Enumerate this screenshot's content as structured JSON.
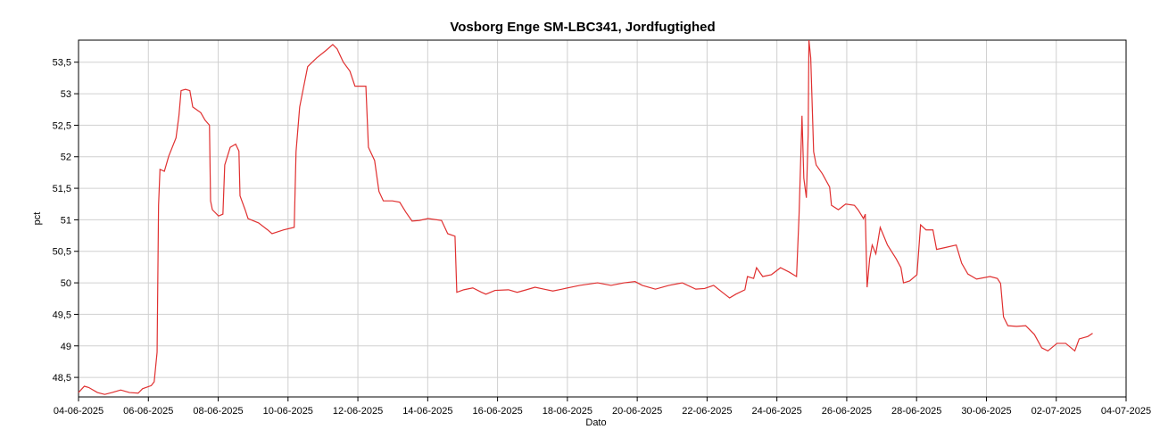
{
  "chart_data": {
    "type": "line",
    "title": "Vosborg Enge SM-LBC341, Jordfugtighed",
    "x_label": "Dato",
    "y_label": "pct",
    "xlim": [
      "2025-06-04",
      "2025-07-04"
    ],
    "xticks": [
      {
        "value": "2025-06-04",
        "label": "04-06-2025"
      },
      {
        "value": "2025-06-06",
        "label": "06-06-2025"
      },
      {
        "value": "2025-06-08",
        "label": "08-06-2025"
      },
      {
        "value": "2025-06-10",
        "label": "10-06-2025"
      },
      {
        "value": "2025-06-12",
        "label": "12-06-2025"
      },
      {
        "value": "2025-06-14",
        "label": "14-06-2025"
      },
      {
        "value": "2025-06-16",
        "label": "16-06-2025"
      },
      {
        "value": "2025-06-18",
        "label": "18-06-2025"
      },
      {
        "value": "2025-06-20",
        "label": "20-06-2025"
      },
      {
        "value": "2025-06-22",
        "label": "22-06-2025"
      },
      {
        "value": "2025-06-24",
        "label": "24-06-2025"
      },
      {
        "value": "2025-06-26",
        "label": "26-06-2025"
      },
      {
        "value": "2025-06-28",
        "label": "28-06-2025"
      },
      {
        "value": "2025-06-30",
        "label": "30-06-2025"
      },
      {
        "value": "2025-07-02",
        "label": "02-07-2025"
      },
      {
        "value": "2025-07-04",
        "label": "04-07-2025"
      }
    ],
    "ylim": [
      48.19,
      53.85
    ],
    "yticks": [
      {
        "value": 48.5,
        "label": "48,5"
      },
      49,
      {
        "value": 49.5,
        "label": "49,5"
      },
      50,
      {
        "value": 50.5,
        "label": "50,5"
      },
      51,
      {
        "value": 51.5,
        "label": "51,5"
      },
      52,
      {
        "value": 52.5,
        "label": "52,5"
      },
      53,
      {
        "value": 53.5,
        "label": "53,5"
      }
    ],
    "grid": true,
    "x": [
      "2025-06-04T00:00",
      "2025-06-04T04:00",
      "2025-06-04T07:00",
      "2025-06-04T13:00",
      "2025-06-04T18:00",
      "2025-06-04T23:00",
      "2025-06-05T05:00",
      "2025-06-05T11:00",
      "2025-06-05T17:00",
      "2025-06-05T20:00",
      "2025-06-06T02:00",
      "2025-06-06T04:00",
      "2025-06-06T06:00",
      "2025-06-06T07:00",
      "2025-06-06T08:00",
      "2025-06-06T11:00",
      "2025-06-06T14:00",
      "2025-06-06T19:00",
      "2025-06-06T21:00",
      "2025-06-06T22:30",
      "2025-06-07T01:30",
      "2025-06-07T04:30",
      "2025-06-07T06:30",
      "2025-06-07T12:00",
      "2025-06-07T15:00",
      "2025-06-07T18:00",
      "2025-06-07T18:45",
      "2025-06-07T20:00",
      "2025-06-08T00:15",
      "2025-06-08T03:15",
      "2025-06-08T04:30",
      "2025-06-08T08:15",
      "2025-06-08T12:00",
      "2025-06-08T14:15",
      "2025-06-08T15:00",
      "2025-06-08T18:30",
      "2025-06-08T20:30",
      "2025-06-09T03:45",
      "2025-06-09T10:00",
      "2025-06-09T13:00",
      "2025-06-09T21:00",
      "2025-06-10T04:15",
      "2025-06-10T05:30",
      "2025-06-10T08:00",
      "2025-06-10T13:30",
      "2025-06-10T19:45",
      "2025-06-11T01:45",
      "2025-06-11T06:45",
      "2025-06-11T09:45",
      "2025-06-11T14:00",
      "2025-06-11T18:30",
      "2025-06-11T22:00",
      "2025-06-12T05:30",
      "2025-06-12T07:15",
      "2025-06-12T11:30",
      "2025-06-12T14:30",
      "2025-06-12T17:30",
      "2025-06-12T23:45",
      "2025-06-13T04:45",
      "2025-06-13T09:00",
      "2025-06-13T13:15",
      "2025-06-13T18:15",
      "2025-06-14T00:15",
      "2025-06-14T09:30",
      "2025-06-14T13:45",
      "2025-06-14T18:45",
      "2025-06-14T20:00",
      "2025-06-15T00:45",
      "2025-06-15T07:00",
      "2025-06-15T13:00",
      "2025-06-15T16:00",
      "2025-06-15T22:15",
      "2025-06-16T07:30",
      "2025-06-16T13:30",
      "2025-06-16T19:45",
      "2025-06-17T01:45",
      "2025-06-17T08:00",
      "2025-06-17T14:00",
      "2025-06-17T20:15",
      "2025-06-18T02:15",
      "2025-06-18T08:30",
      "2025-06-18T20:45",
      "2025-06-19T06:00",
      "2025-06-19T15:00",
      "2025-06-19T22:30",
      "2025-06-20T03:30",
      "2025-06-20T12:30",
      "2025-06-20T21:45",
      "2025-06-21T07:00",
      "2025-06-21T16:15",
      "2025-06-21T22:15",
      "2025-06-22T04:30",
      "2025-06-22T10:30",
      "2025-06-22T15:30",
      "2025-06-22T19:45",
      "2025-06-23T02:00",
      "2025-06-23T03:45",
      "2025-06-23T08:00",
      "2025-06-23T10:00",
      "2025-06-23T14:15",
      "2025-06-23T20:15",
      "2025-06-24T02:30",
      "2025-06-24T08:30",
      "2025-06-24T13:30",
      "2025-06-24T15:15",
      "2025-06-24T17:15",
      "2025-06-24T18:30",
      "2025-06-24T20:15",
      "2025-06-24T21:30",
      "2025-06-24T22:00",
      "2025-06-24T23:15",
      "2025-06-25T01:15",
      "2025-06-25T03:00",
      "2025-06-25T07:15",
      "2025-06-25T12:15",
      "2025-06-25T13:30",
      "2025-06-25T18:15",
      "2025-06-25T23:15",
      "2025-06-26T05:15",
      "2025-06-26T07:45",
      "2025-06-26T11:30",
      "2025-06-26T12:45",
      "2025-06-26T14:00",
      "2025-06-26T15:45",
      "2025-06-26T17:30",
      "2025-06-26T20:00",
      "2025-06-26T23:00",
      "2025-06-27T04:00",
      "2025-06-27T10:00",
      "2025-06-27T13:15",
      "2025-06-27T15:00",
      "2025-06-27T19:15",
      "2025-06-28T00:15",
      "2025-06-28T02:45",
      "2025-06-28T06:30",
      "2025-06-28T11:15",
      "2025-06-28T13:45",
      "2025-06-28T19:45",
      "2025-06-29T03:15",
      "2025-06-29T07:00",
      "2025-06-29T11:15",
      "2025-06-29T17:15",
      "2025-06-30T02:30",
      "2025-06-30T07:30",
      "2025-06-30T09:45",
      "2025-06-30T11:45",
      "2025-06-30T14:45",
      "2025-06-30T20:45",
      "2025-07-01T03:00",
      "2025-07-01T09:00",
      "2025-07-01T14:00",
      "2025-07-01T18:15",
      "2025-07-02T00:30",
      "2025-07-02T06:30",
      "2025-07-02T12:45",
      "2025-07-02T15:45",
      "2025-07-02T21:45",
      "2025-07-03T01:00"
    ],
    "series": [
      {
        "name": "Jordfugtighed",
        "color": "#e03030",
        "values": [
          48.26,
          48.36,
          48.34,
          48.26,
          48.23,
          48.26,
          48.3,
          48.26,
          48.25,
          48.32,
          48.37,
          48.43,
          48.9,
          51.23,
          51.8,
          51.77,
          52.01,
          52.3,
          52.65,
          53.05,
          53.07,
          53.05,
          52.79,
          52.7,
          52.58,
          52.5,
          51.3,
          51.16,
          51.06,
          51.09,
          51.87,
          52.15,
          52.2,
          52.09,
          51.38,
          51.16,
          51.02,
          50.95,
          50.84,
          50.78,
          50.84,
          50.88,
          52.08,
          52.79,
          53.43,
          53.57,
          53.68,
          53.78,
          53.71,
          53.5,
          53.36,
          53.12,
          53.12,
          52.15,
          51.94,
          51.45,
          51.3,
          51.3,
          51.28,
          51.12,
          50.98,
          50.99,
          51.02,
          50.99,
          50.78,
          50.74,
          49.85,
          49.89,
          49.92,
          49.85,
          49.82,
          49.88,
          49.89,
          49.85,
          49.89,
          49.93,
          49.9,
          49.87,
          49.9,
          49.93,
          49.96,
          50.0,
          49.96,
          50.0,
          50.02,
          49.96,
          49.9,
          49.96,
          50.0,
          49.9,
          49.91,
          49.96,
          49.85,
          49.76,
          49.82,
          49.89,
          50.1,
          50.07,
          50.24,
          50.1,
          50.13,
          50.24,
          50.17,
          50.1,
          51.09,
          52.65,
          51.66,
          51.35,
          52.37,
          53.85,
          53.57,
          52.08,
          51.87,
          51.73,
          51.52,
          51.23,
          51.16,
          51.25,
          51.23,
          51.16,
          51.02,
          51.09,
          49.93,
          50.38,
          50.6,
          50.46,
          50.88,
          50.6,
          50.38,
          50.24,
          50.0,
          50.03,
          50.13,
          50.92,
          50.84,
          50.84,
          50.53,
          50.56,
          50.6,
          50.31,
          50.14,
          50.06,
          50.1,
          50.07,
          49.99,
          49.46,
          49.32,
          49.31,
          49.32,
          49.18,
          48.97,
          48.92,
          49.04,
          49.04,
          48.92,
          49.11,
          49.15,
          49.2
        ]
      }
    ]
  }
}
